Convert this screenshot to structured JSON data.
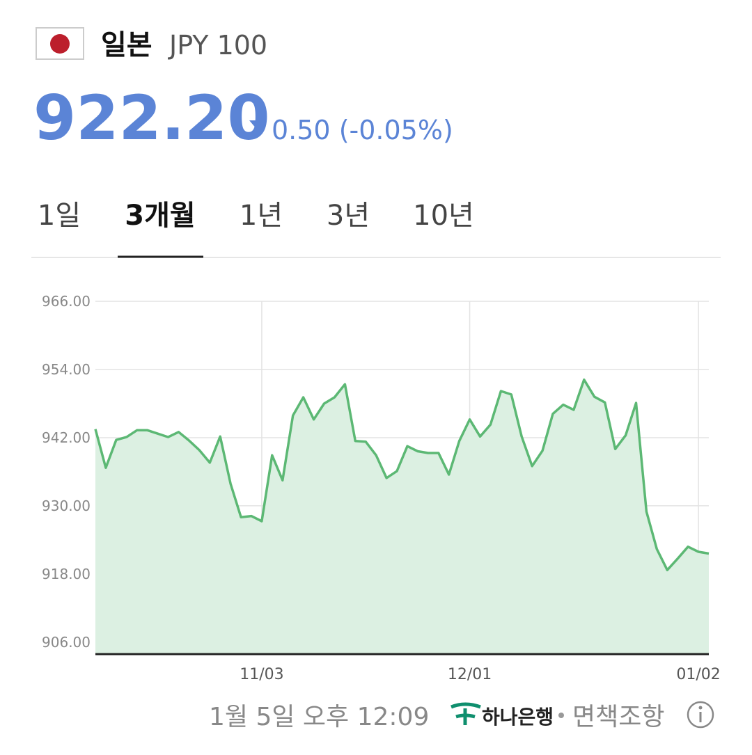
{
  "header": {
    "name": "일본",
    "code": "JPY 100"
  },
  "quote": {
    "price": "922.20",
    "change": "0.50 (-0.05%)"
  },
  "tabs": {
    "items": [
      "1일",
      "3개월",
      "1년",
      "3년",
      "10년"
    ],
    "active": 1
  },
  "chart_data": {
    "type": "line",
    "categories": [
      null,
      null,
      null,
      null,
      null,
      null,
      null,
      null,
      null,
      null,
      null,
      null,
      null,
      null,
      null,
      null,
      "11/03",
      null,
      null,
      null,
      null,
      null,
      null,
      null,
      null,
      null,
      null,
      null,
      null,
      null,
      null,
      null,
      null,
      null,
      null,
      null,
      "12/01",
      null,
      null,
      null,
      null,
      null,
      null,
      null,
      null,
      null,
      null,
      null,
      null,
      null,
      null,
      null,
      null,
      null,
      null,
      null,
      null,
      null,
      "01/02",
      null
    ],
    "values": [
      943.5,
      936.7,
      941.6,
      942.1,
      943.3,
      943.3,
      942.7,
      942.1,
      943.0,
      941.5,
      939.8,
      937.6,
      942.2,
      933.9,
      928.0,
      928.2,
      927.3,
      938.9,
      934.5,
      945.9,
      949.1,
      945.2,
      948.0,
      949.1,
      951.4,
      941.4,
      941.3,
      938.9,
      934.9,
      936.1,
      940.5,
      939.6,
      939.3,
      939.3,
      935.5,
      941.4,
      945.2,
      942.2,
      944.3,
      950.2,
      949.6,
      942.2,
      937.0,
      939.7,
      946.2,
      947.8,
      946.9,
      952.2,
      949.2,
      948.2,
      940.0,
      942.4,
      948.1,
      929.0,
      922.4,
      918.7,
      920.7,
      922.8,
      921.9,
      921.6
    ],
    "color": "#5cb874",
    "fill": "#dcf0e2",
    "ylim": [
      903.9,
      966
    ],
    "yticks": [
      {
        "value": 906,
        "label": "906.00"
      },
      {
        "value": 918,
        "label": "918.00"
      },
      {
        "value": 930,
        "label": "930.00"
      },
      {
        "value": 942,
        "label": "942.00"
      },
      {
        "value": 954,
        "label": "954.00"
      },
      {
        "value": 966,
        "label": "966.00"
      }
    ],
    "grid": true
  },
  "footer": {
    "timestamp": "1월 5일 오후 12:09",
    "bank": "하나은행",
    "disclaimer": "면책조항"
  }
}
